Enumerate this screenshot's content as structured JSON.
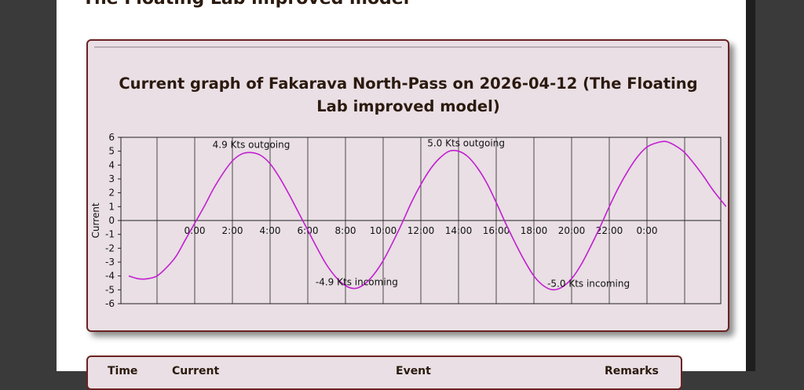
{
  "page_heading": "The Floating Lab improved model",
  "chart_data": {
    "type": "line",
    "title": "Current graph of Fakarava North-Pass on 2026-04-12 (The Floating Lab improved model)",
    "xlabel": "",
    "ylabel": "Current",
    "ylim": [
      -6,
      6
    ],
    "yticks": [
      "6",
      "5",
      "4",
      "3",
      "2",
      "1",
      "0",
      "-1",
      "-2",
      "-3",
      "-4",
      "-5",
      "-6"
    ],
    "xticks": [
      "0:00",
      "2:00",
      "4:00",
      "6:00",
      "8:00",
      "10:00",
      "12:00",
      "14:00",
      "16:00",
      "18:00",
      "20:00",
      "22:00",
      "0:00"
    ],
    "grid": true,
    "line_color": "#c21fd1",
    "series": [
      {
        "x": [
          -3.5,
          -3.0,
          -2.5,
          -2.0,
          -1.5,
          -1.0,
          -0.5,
          0.0,
          0.5,
          1.0,
          1.5,
          2.0,
          2.5,
          3.0,
          3.5,
          4.0,
          4.5,
          5.0,
          5.5,
          6.0,
          6.5,
          7.0,
          7.5,
          8.0,
          8.5,
          9.0,
          9.5,
          10.0,
          10.5,
          11.0,
          11.5,
          12.0,
          12.5,
          13.0,
          13.5,
          14.0,
          14.5,
          15.0,
          15.5,
          16.0,
          16.5,
          17.0,
          17.5,
          18.0,
          18.5,
          19.0,
          19.5,
          20.0,
          20.5,
          21.0,
          21.5,
          22.0,
          22.5,
          23.0,
          23.5,
          24.0,
          24.5,
          25.0,
          25.5,
          26.0,
          26.5,
          27.0,
          27.5,
          28.2
        ],
        "y": [
          -4.0,
          -4.2,
          -4.2,
          -4.0,
          -3.4,
          -2.6,
          -1.4,
          -0.2,
          1.0,
          2.3,
          3.4,
          4.3,
          4.8,
          4.9,
          4.7,
          4.1,
          3.1,
          1.9,
          0.6,
          -0.7,
          -2.0,
          -3.2,
          -4.1,
          -4.7,
          -4.9,
          -4.6,
          -3.9,
          -2.9,
          -1.6,
          -0.2,
          1.3,
          2.6,
          3.7,
          4.5,
          5.0,
          5.0,
          4.6,
          3.8,
          2.7,
          1.3,
          -0.2,
          -1.6,
          -2.9,
          -4.0,
          -4.7,
          -5.0,
          -4.8,
          -4.2,
          -3.2,
          -1.9,
          -0.5,
          1.0,
          2.4,
          3.6,
          4.6,
          5.3,
          5.6,
          5.7,
          5.4,
          4.9,
          4.1,
          3.2,
          2.2,
          1.0
        ]
      }
    ],
    "annotations": [
      {
        "text": "4.9 Kts  outgoing",
        "x": 3.0,
        "y": 4.9
      },
      {
        "text": "-4.9 Kts  incoming",
        "x": 8.6,
        "y": -4.9
      },
      {
        "text": "5.0 Kts  outgoing",
        "x": 14.4,
        "y": 5.0
      },
      {
        "text": "-5.0 Kts  incoming",
        "x": 20.9,
        "y": -5.0
      }
    ]
  },
  "table_header": {
    "time": "Time",
    "current": "Current",
    "event": "Event",
    "remarks": "Remarks"
  }
}
